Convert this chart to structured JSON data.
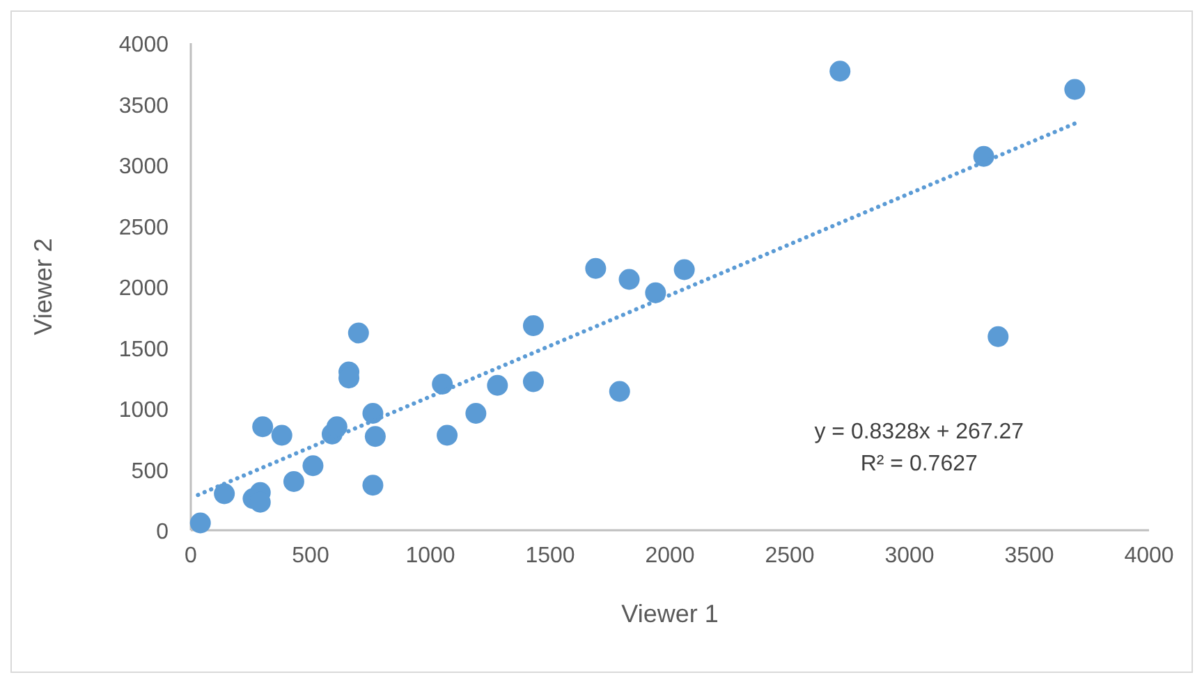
{
  "chart_data": {
    "type": "scatter",
    "xlabel": "Viewer 1",
    "ylabel": "Viewer 2",
    "xlim": [
      0,
      4000
    ],
    "ylim": [
      0,
      4000
    ],
    "xticks": [
      0,
      500,
      1000,
      1500,
      2000,
      2500,
      3000,
      3500,
      4000
    ],
    "yticks": [
      0,
      500,
      1000,
      1500,
      2000,
      2500,
      3000,
      3500,
      4000
    ],
    "grid": false,
    "series": [
      {
        "color": "#5b9bd5",
        "marker": "circle",
        "x": [
          40,
          140,
          260,
          290,
          290,
          300,
          380,
          430,
          510,
          590,
          610,
          660,
          660,
          700,
          760,
          770,
          760,
          1050,
          1070,
          1190,
          1280,
          1430,
          1430,
          1690,
          1830,
          1790,
          1940,
          2060,
          2710,
          3310,
          3690,
          3370
        ],
        "values": [
          60,
          300,
          260,
          310,
          230,
          850,
          780,
          400,
          530,
          790,
          850,
          1300,
          1250,
          1620,
          960,
          770,
          370,
          1200,
          780,
          960,
          1190,
          1680,
          1220,
          2150,
          2060,
          1140,
          1950,
          2140,
          3770,
          3070,
          3620,
          1590
        ]
      },
      {
        "type": "line",
        "color": "#5b9bd5",
        "line_style": "dotted",
        "marker": "none",
        "x": [
          30,
          3690
        ],
        "values": [
          290,
          3340
        ]
      }
    ],
    "annotations": [
      "y = 0.8328x + 267.27",
      "R² = 0.7627"
    ]
  }
}
